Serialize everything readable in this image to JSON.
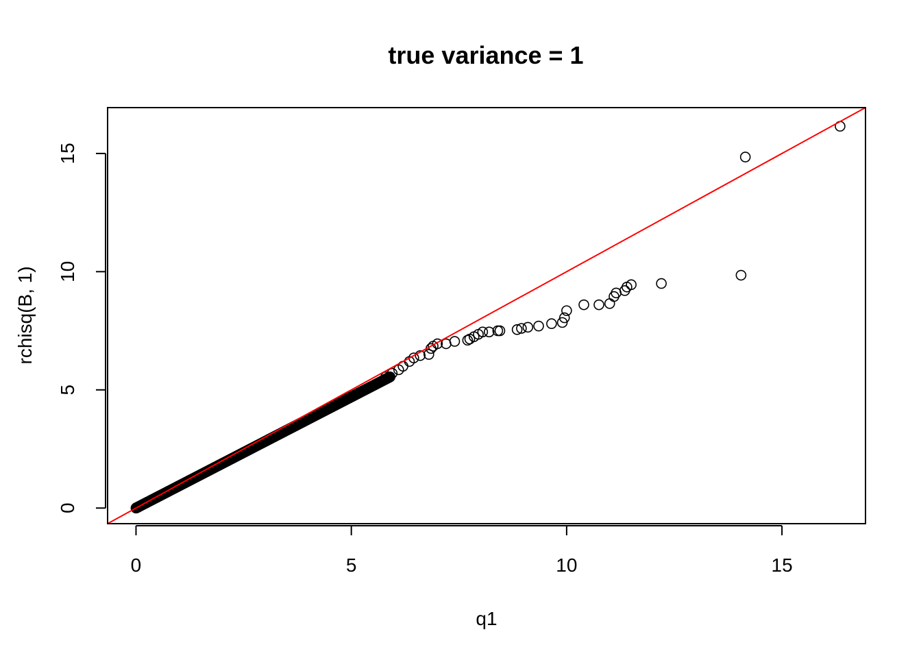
{
  "chart_data": {
    "type": "scatter",
    "title": "true variance = 1",
    "xlabel": "q1",
    "ylabel": "rchisq(B, 1)",
    "xlim": [
      -0.66,
      16.94
    ],
    "ylim": [
      -0.66,
      16.94
    ],
    "x_ticks": [
      0,
      5,
      10,
      15
    ],
    "y_ticks": [
      0,
      5,
      10,
      15
    ],
    "x_tick_labels": [
      "0",
      "5",
      "10",
      "15"
    ],
    "y_tick_labels": [
      "0",
      "5",
      "10",
      "15"
    ],
    "marker": "open-circle",
    "grid": false,
    "reference_line": {
      "intercept": 0,
      "slope": 1,
      "color": "#ff0000"
    },
    "dense_segment": {
      "x_start": 0.0,
      "x_end": 5.9,
      "y_start": 0.0,
      "y_end": 5.55,
      "count": 1200
    },
    "points": [
      [
        5.8,
        5.55
      ],
      [
        5.95,
        5.7
      ],
      [
        6.1,
        5.85
      ],
      [
        6.2,
        6.0
      ],
      [
        6.35,
        6.2
      ],
      [
        6.45,
        6.35
      ],
      [
        6.6,
        6.45
      ],
      [
        6.8,
        6.5
      ],
      [
        6.85,
        6.75
      ],
      [
        6.9,
        6.85
      ],
      [
        7.0,
        6.95
      ],
      [
        7.2,
        6.95
      ],
      [
        7.4,
        7.05
      ],
      [
        7.7,
        7.1
      ],
      [
        7.75,
        7.15
      ],
      [
        7.85,
        7.25
      ],
      [
        7.95,
        7.35
      ],
      [
        8.05,
        7.45
      ],
      [
        8.2,
        7.45
      ],
      [
        8.4,
        7.5
      ],
      [
        8.45,
        7.5
      ],
      [
        8.85,
        7.55
      ],
      [
        8.95,
        7.6
      ],
      [
        9.1,
        7.65
      ],
      [
        9.35,
        7.7
      ],
      [
        9.65,
        7.8
      ],
      [
        9.9,
        7.85
      ],
      [
        9.95,
        8.05
      ],
      [
        10.0,
        8.35
      ],
      [
        10.4,
        8.6
      ],
      [
        10.75,
        8.6
      ],
      [
        11.0,
        8.65
      ],
      [
        11.1,
        8.95
      ],
      [
        11.15,
        9.1
      ],
      [
        11.35,
        9.2
      ],
      [
        11.4,
        9.35
      ],
      [
        11.5,
        9.45
      ],
      [
        12.2,
        9.5
      ],
      [
        14.05,
        9.85
      ],
      [
        14.15,
        14.85
      ],
      [
        16.35,
        16.15
      ]
    ]
  }
}
